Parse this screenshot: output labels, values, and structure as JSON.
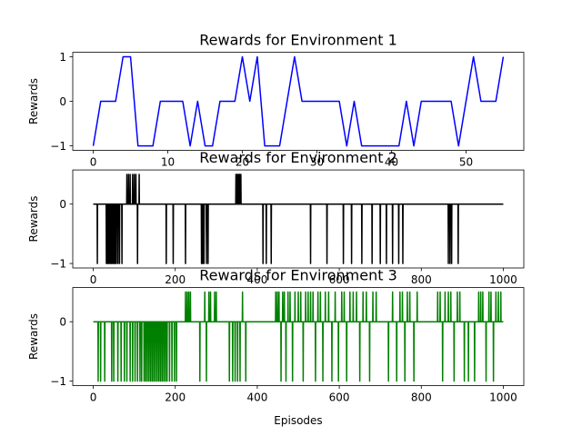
{
  "chart_data": [
    {
      "type": "line",
      "title": "Rewards for Environment 1",
      "ylabel": "Rewards",
      "xlabel": "",
      "xlim": [
        -2.75,
        57.75
      ],
      "ylim": [
        -1.1,
        1.1
      ],
      "xticks": [
        0,
        10,
        20,
        30,
        40,
        50
      ],
      "yticks": [
        -1,
        0,
        1
      ],
      "color": "#0000ff",
      "grid": false,
      "series": [
        {
          "x": [
            0,
            1,
            2,
            3,
            4,
            5,
            6,
            7,
            8,
            9,
            10,
            11,
            12,
            13,
            14,
            15,
            16,
            17,
            18,
            19,
            20,
            21,
            22,
            23,
            24,
            25,
            26,
            27,
            28,
            29,
            30,
            31,
            32,
            33,
            34,
            35,
            36,
            37,
            38,
            39,
            40,
            41,
            42,
            43,
            44,
            45,
            46,
            47,
            48,
            49,
            50,
            51,
            52,
            53,
            54,
            55
          ],
          "values": [
            -1,
            0,
            0,
            0,
            1,
            1,
            -1,
            -1,
            -1,
            0,
            0,
            0,
            0,
            -1,
            0,
            -1,
            -1,
            0,
            0,
            0,
            1,
            0,
            1,
            -1,
            -1,
            -1,
            0,
            1,
            0,
            0,
            0,
            0,
            0,
            0,
            -1,
            0,
            -1,
            -1,
            -1,
            -1,
            -1,
            -1,
            0,
            -1,
            0,
            0,
            0,
            0,
            0,
            -1,
            0,
            1,
            0,
            0,
            0,
            1
          ]
        }
      ]
    },
    {
      "type": "line",
      "title": "Rewards for Environment 2",
      "ylabel": "Rewards",
      "xlabel": "",
      "xlim": [
        -50,
        1050
      ],
      "ylim": [
        -1.075,
        0.575
      ],
      "xticks": [
        0,
        200,
        400,
        600,
        800,
        1000
      ],
      "yticks": [
        -1,
        0
      ],
      "color": "#000000",
      "grid": false,
      "baseline": 0,
      "length": 1000,
      "events": [
        {
          "x": 10,
          "v": -1
        },
        {
          "x": 32,
          "v": -1
        },
        {
          "x": 35,
          "v": -1
        },
        {
          "x": 38,
          "v": -1
        },
        {
          "x": 41,
          "v": -1
        },
        {
          "x": 44,
          "v": -1
        },
        {
          "x": 47,
          "v": -1
        },
        {
          "x": 50,
          "v": -1
        },
        {
          "x": 53,
          "v": -1
        },
        {
          "x": 56,
          "v": -1
        },
        {
          "x": 60,
          "v": -1
        },
        {
          "x": 64,
          "v": -1
        },
        {
          "x": 70,
          "v": -1
        },
        {
          "x": 82,
          "v": 0.5
        },
        {
          "x": 86,
          "v": 0.5
        },
        {
          "x": 90,
          "v": 0.5
        },
        {
          "x": 96,
          "v": 0.5
        },
        {
          "x": 100,
          "v": 0.5
        },
        {
          "x": 104,
          "v": 0.5
        },
        {
          "x": 108,
          "v": -1
        },
        {
          "x": 112,
          "v": 0.5
        },
        {
          "x": 178,
          "v": -1
        },
        {
          "x": 195,
          "v": -1
        },
        {
          "x": 225,
          "v": -1
        },
        {
          "x": 264,
          "v": -1
        },
        {
          "x": 267,
          "v": -1
        },
        {
          "x": 270,
          "v": -1
        },
        {
          "x": 276,
          "v": -1
        },
        {
          "x": 280,
          "v": -1
        },
        {
          "x": 348,
          "v": 0.5
        },
        {
          "x": 351,
          "v": 0.5
        },
        {
          "x": 354,
          "v": 0.5
        },
        {
          "x": 357,
          "v": 0.5
        },
        {
          "x": 360,
          "v": 0.5
        },
        {
          "x": 414,
          "v": -1
        },
        {
          "x": 422,
          "v": -1
        },
        {
          "x": 434,
          "v": -1
        },
        {
          "x": 530,
          "v": -1
        },
        {
          "x": 570,
          "v": -1
        },
        {
          "x": 610,
          "v": -1
        },
        {
          "x": 630,
          "v": -1
        },
        {
          "x": 655,
          "v": -1
        },
        {
          "x": 680,
          "v": -1
        },
        {
          "x": 700,
          "v": -1
        },
        {
          "x": 715,
          "v": -1
        },
        {
          "x": 730,
          "v": -1
        },
        {
          "x": 745,
          "v": -1
        },
        {
          "x": 755,
          "v": -1
        },
        {
          "x": 866,
          "v": -1
        },
        {
          "x": 870,
          "v": -1
        },
        {
          "x": 874,
          "v": -1
        },
        {
          "x": 890,
          "v": -1
        }
      ]
    },
    {
      "type": "line",
      "title": "Rewards for Environment 3",
      "ylabel": "Rewards",
      "xlabel": "Episodes",
      "xlim": [
        -50,
        1050
      ],
      "ylim": [
        -1.075,
        0.575
      ],
      "xticks": [
        0,
        200,
        400,
        600,
        800,
        1000
      ],
      "yticks": [
        -1,
        0
      ],
      "color": "#008000",
      "grid": false,
      "baseline": 0,
      "length": 1000,
      "events": [
        {
          "x": 12,
          "v": -1
        },
        {
          "x": 18,
          "v": -1
        },
        {
          "x": 28,
          "v": -1
        },
        {
          "x": 45,
          "v": -1
        },
        {
          "x": 50,
          "v": -1
        },
        {
          "x": 60,
          "v": -1
        },
        {
          "x": 68,
          "v": -1
        },
        {
          "x": 76,
          "v": -1
        },
        {
          "x": 82,
          "v": -1
        },
        {
          "x": 90,
          "v": -1
        },
        {
          "x": 96,
          "v": -1
        },
        {
          "x": 102,
          "v": -1
        },
        {
          "x": 108,
          "v": -1
        },
        {
          "x": 114,
          "v": -1
        },
        {
          "x": 118,
          "v": -1
        },
        {
          "x": 124,
          "v": -1
        },
        {
          "x": 128,
          "v": -1
        },
        {
          "x": 132,
          "v": -1
        },
        {
          "x": 136,
          "v": -1
        },
        {
          "x": 140,
          "v": -1
        },
        {
          "x": 144,
          "v": -1
        },
        {
          "x": 148,
          "v": -1
        },
        {
          "x": 152,
          "v": -1
        },
        {
          "x": 156,
          "v": -1
        },
        {
          "x": 160,
          "v": -1
        },
        {
          "x": 164,
          "v": -1
        },
        {
          "x": 168,
          "v": -1
        },
        {
          "x": 172,
          "v": -1
        },
        {
          "x": 176,
          "v": -1
        },
        {
          "x": 180,
          "v": -1
        },
        {
          "x": 186,
          "v": -1
        },
        {
          "x": 192,
          "v": -1
        },
        {
          "x": 198,
          "v": -1
        },
        {
          "x": 203,
          "v": -1
        },
        {
          "x": 225,
          "v": 0.5
        },
        {
          "x": 229,
          "v": 0.5
        },
        {
          "x": 233,
          "v": 0.5
        },
        {
          "x": 237,
          "v": 0.5
        },
        {
          "x": 260,
          "v": -1
        },
        {
          "x": 272,
          "v": 0.5
        },
        {
          "x": 276,
          "v": -1
        },
        {
          "x": 282,
          "v": 0.5
        },
        {
          "x": 286,
          "v": 0.5
        },
        {
          "x": 296,
          "v": 0.5
        },
        {
          "x": 300,
          "v": 0.5
        },
        {
          "x": 332,
          "v": -1
        },
        {
          "x": 340,
          "v": -1
        },
        {
          "x": 346,
          "v": -1
        },
        {
          "x": 352,
          "v": -1
        },
        {
          "x": 358,
          "v": -1
        },
        {
          "x": 364,
          "v": 0.5
        },
        {
          "x": 372,
          "v": -1
        },
        {
          "x": 445,
          "v": 0.5
        },
        {
          "x": 449,
          "v": 0.5
        },
        {
          "x": 453,
          "v": 0.5
        },
        {
          "x": 458,
          "v": -1
        },
        {
          "x": 462,
          "v": 0.5
        },
        {
          "x": 466,
          "v": 0.5
        },
        {
          "x": 470,
          "v": -1
        },
        {
          "x": 475,
          "v": 0.5
        },
        {
          "x": 480,
          "v": 0.5
        },
        {
          "x": 486,
          "v": -1
        },
        {
          "x": 492,
          "v": 0.5
        },
        {
          "x": 500,
          "v": 0.5
        },
        {
          "x": 506,
          "v": 0.5
        },
        {
          "x": 512,
          "v": -1
        },
        {
          "x": 518,
          "v": 0.5
        },
        {
          "x": 524,
          "v": 0.5
        },
        {
          "x": 530,
          "v": 0.5
        },
        {
          "x": 536,
          "v": 0.5
        },
        {
          "x": 542,
          "v": -1
        },
        {
          "x": 548,
          "v": 0.5
        },
        {
          "x": 554,
          "v": 0.5
        },
        {
          "x": 560,
          "v": -1
        },
        {
          "x": 566,
          "v": 0.5
        },
        {
          "x": 574,
          "v": 0.5
        },
        {
          "x": 582,
          "v": -1
        },
        {
          "x": 590,
          "v": 0.5
        },
        {
          "x": 598,
          "v": -1
        },
        {
          "x": 606,
          "v": 0.5
        },
        {
          "x": 612,
          "v": 0.5
        },
        {
          "x": 618,
          "v": -1
        },
        {
          "x": 626,
          "v": 0.5
        },
        {
          "x": 634,
          "v": 0.5
        },
        {
          "x": 642,
          "v": 0.5
        },
        {
          "x": 650,
          "v": -1
        },
        {
          "x": 658,
          "v": 0.5
        },
        {
          "x": 666,
          "v": 0.5
        },
        {
          "x": 674,
          "v": -1
        },
        {
          "x": 682,
          "v": 0.5
        },
        {
          "x": 690,
          "v": 0.5
        },
        {
          "x": 720,
          "v": -1
        },
        {
          "x": 730,
          "v": 0.5
        },
        {
          "x": 740,
          "v": -1
        },
        {
          "x": 748,
          "v": 0.5
        },
        {
          "x": 754,
          "v": 0.5
        },
        {
          "x": 760,
          "v": -1
        },
        {
          "x": 766,
          "v": 0.5
        },
        {
          "x": 772,
          "v": 0.5
        },
        {
          "x": 782,
          "v": -1
        },
        {
          "x": 790,
          "v": 0.5
        },
        {
          "x": 840,
          "v": 0.5
        },
        {
          "x": 846,
          "v": 0.5
        },
        {
          "x": 852,
          "v": -1
        },
        {
          "x": 858,
          "v": 0.5
        },
        {
          "x": 866,
          "v": 0.5
        },
        {
          "x": 872,
          "v": 0.5
        },
        {
          "x": 880,
          "v": -1
        },
        {
          "x": 888,
          "v": 0.5
        },
        {
          "x": 894,
          "v": 0.5
        },
        {
          "x": 905,
          "v": -1
        },
        {
          "x": 915,
          "v": -1
        },
        {
          "x": 930,
          "v": -1
        },
        {
          "x": 940,
          "v": 0.5
        },
        {
          "x": 945,
          "v": 0.5
        },
        {
          "x": 950,
          "v": 0.5
        },
        {
          "x": 958,
          "v": -1
        },
        {
          "x": 965,
          "v": 0.5
        },
        {
          "x": 970,
          "v": 0.5
        },
        {
          "x": 976,
          "v": -1
        },
        {
          "x": 982,
          "v": 0.5
        },
        {
          "x": 988,
          "v": 0.5
        },
        {
          "x": 994,
          "v": 0.5
        }
      ]
    }
  ]
}
